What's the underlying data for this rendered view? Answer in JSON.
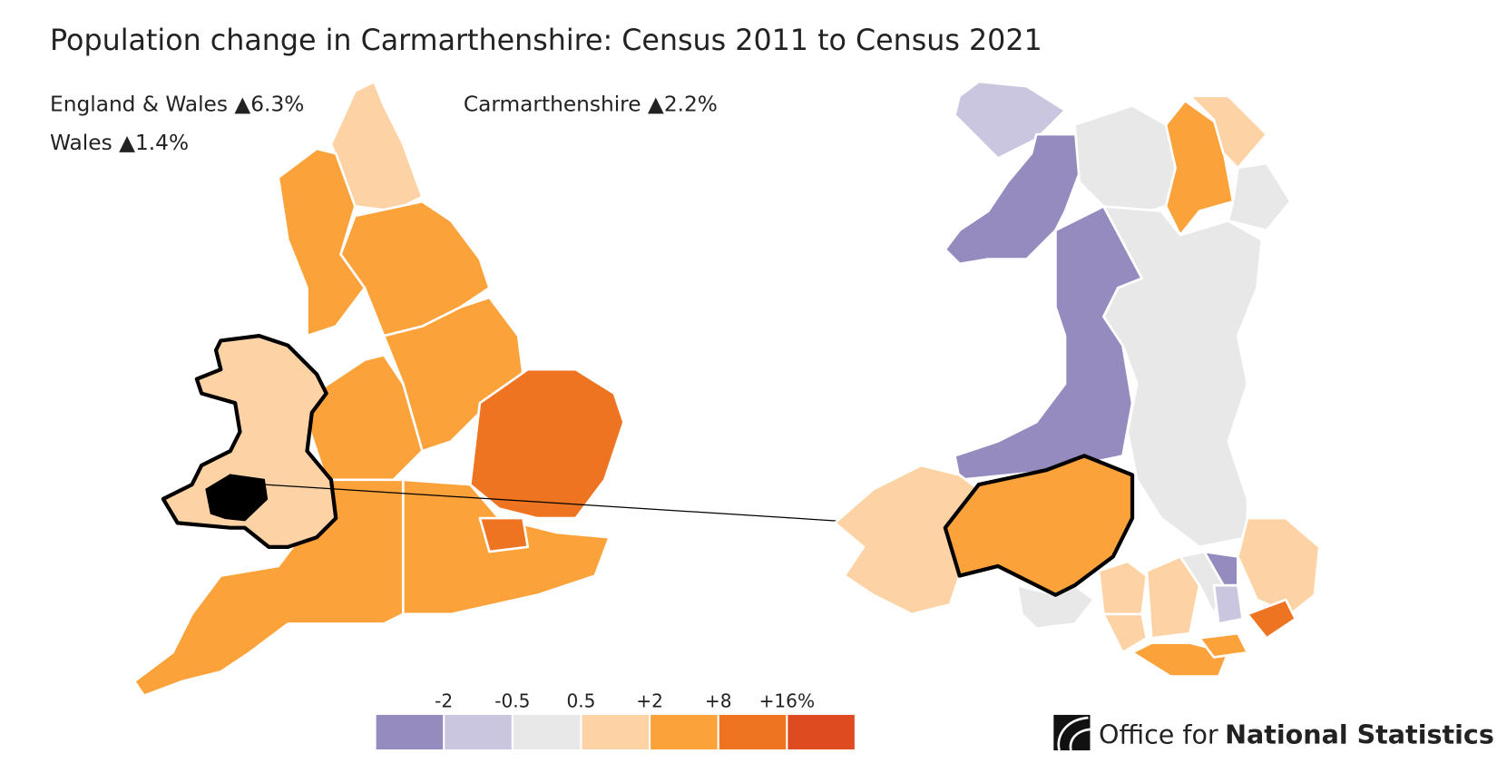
{
  "header": {
    "title": "Population change in Carmarthenshire: Census 2011 to Census 2021"
  },
  "stats": [
    {
      "area": "England & Wales",
      "change": "▲6.3%"
    },
    {
      "area": "Wales",
      "change": "▲1.4%"
    },
    {
      "area": "Carmarthenshire",
      "change": "▲2.2%"
    }
  ],
  "legend": {
    "breaks": [
      "-2",
      "-0.5",
      "0.5",
      "+2",
      "+8",
      "+16%"
    ],
    "colors": [
      "#958bbf",
      "#cbc6e0",
      "#e8e8e8",
      "#fdd3a6",
      "#fba23a",
      "#ee7422",
      "#df4b21"
    ]
  },
  "logo": {
    "office": "Office for",
    "name": "National Statistics"
  }
}
